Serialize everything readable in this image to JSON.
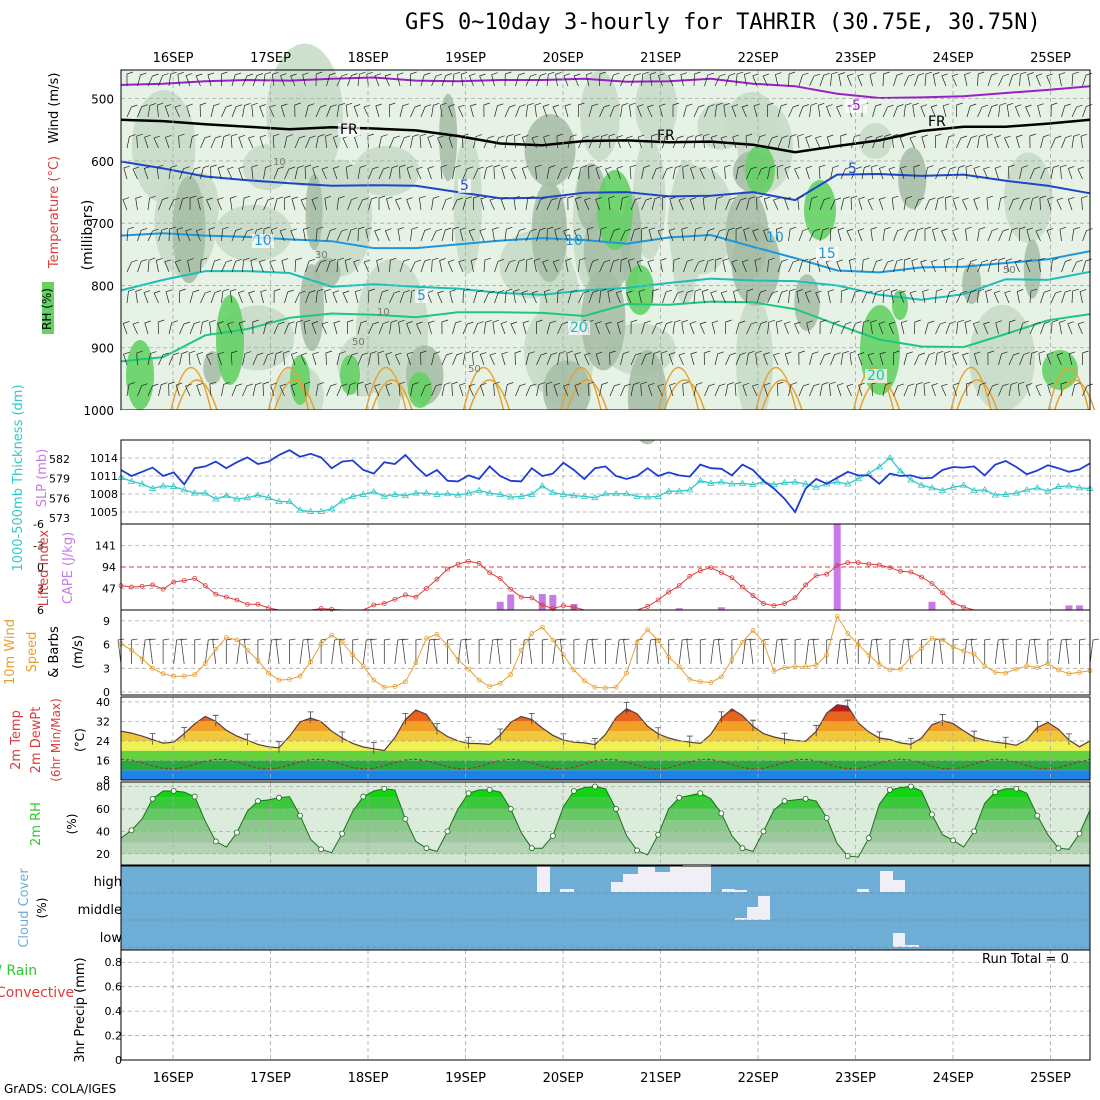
{
  "header": {
    "title": "GFS 0~10day 3-hourly for TAHRIR (30.75E, 30.75N)"
  },
  "footer": {
    "credit": "GrADS: COLA/IGES",
    "run_total": "Run Total = 0"
  },
  "colors": {
    "background": "#ffffff",
    "grid": "#a8a8a8",
    "rh_light": "#e6f2e6",
    "rh_mid": "#c8dcc8",
    "rh_dark": "#a4bca4",
    "rh_green": "#64d264",
    "temp_purple": "#9b1fc8",
    "temp_blue": "#1e46c8",
    "temp_sky": "#1e96dc",
    "temp_teal": "#1ebeb4",
    "temp_green": "#1ec87a",
    "temp_orange": "#e6a032",
    "slp_line": "#1e3cd2",
    "thickness_line": "#32c8c8",
    "lifted_index": "#dc3c3c",
    "cape_bar": "#c87ae6",
    "wind_speed": "#e6a032",
    "cloud_sky": "#6eaed6",
    "cloud_fill": "#f0eef6",
    "rh2m_green": "#32c832"
  },
  "chart_data": [
    {
      "panel": "upper-air",
      "type": "area",
      "axis_title": "(millibars)",
      "legend_labels": [
        "Wind (m/s)",
        "Temperature (°C)",
        "RH (%)"
      ],
      "y_levels": [
        "500",
        "600",
        "700",
        "800",
        "900",
        "1000"
      ],
      "y_range_mb": [
        454,
        1000
      ],
      "x_tick_labels": [
        "16SEP",
        "17SEP",
        "18SEP",
        "19SEP",
        "20SEP",
        "21SEP",
        "22SEP",
        "23SEP",
        "24SEP",
        "25SEP"
      ],
      "isotherm_labels": [
        "-5",
        "FR",
        "5",
        "10",
        "15",
        "20"
      ],
      "rh_contour_labels": [
        "10",
        "30",
        "50"
      ],
      "isotherms": [
        {
          "label": "-5",
          "color": "purple",
          "pressure": [
            478,
            476,
            472,
            470,
            471,
            468,
            466,
            471,
            472,
            470,
            470,
            468,
            473,
            472,
            468,
            476,
            480,
            492,
            499,
            498,
            496,
            491,
            486,
            480
          ]
        },
        {
          "label": "FR",
          "color": "black",
          "pressure": [
            534,
            536,
            541,
            545,
            549,
            546,
            548,
            551,
            560,
            572,
            575,
            568,
            567,
            570,
            569,
            574,
            586,
            576,
            567,
            552,
            545,
            545,
            540,
            534
          ]
        },
        {
          "label": "5",
          "color": "blue",
          "pressure": [
            601,
            612,
            625,
            631,
            636,
            640,
            639,
            640,
            650,
            660,
            659,
            651,
            650,
            657,
            656,
            650,
            663,
            622,
            621,
            624,
            622,
            632,
            640,
            652
          ]
        },
        {
          "label": "10",
          "color": "sky",
          "pressure": [
            720,
            716,
            720,
            722,
            726,
            729,
            740,
            740,
            734,
            728,
            724,
            727,
            733,
            723,
            719,
            738,
            756,
            776,
            779,
            771,
            770,
            764,
            758,
            745
          ]
        },
        {
          "label": "15",
          "color": "teal",
          "pressure": [
            808,
            791,
            777,
            777,
            780,
            802,
            798,
            802,
            805,
            812,
            815,
            808,
            804,
            796,
            789,
            792,
            793,
            800,
            815,
            823,
            814,
            790,
            791,
            778
          ]
        },
        {
          "label": "20",
          "color": "green",
          "pressure": [
            922,
            915,
            880,
            870,
            852,
            845,
            847,
            851,
            843,
            843,
            844,
            849,
            830,
            831,
            826,
            827,
            838,
            863,
            887,
            898,
            899,
            878,
            856,
            846
          ]
        }
      ]
    },
    {
      "panel": "slp-thickness",
      "type": "line",
      "ylabel_left": "1000-500mb Thickness (dm)",
      "ylabel_right": "SLP (mb)",
      "left_ticks": [
        "582",
        "579",
        "576",
        "573"
      ],
      "right_ticks": [
        "1014",
        "1011",
        "1008",
        "1005"
      ],
      "series": [
        {
          "name": "SLP (mb)",
          "units": "mb",
          "range": [
            1004,
            1016
          ],
          "values": [
            1012,
            1011,
            1011.7,
            1012.4,
            1011,
            1011.6,
            1009.6,
            1012.3,
            1012.6,
            1013.4,
            1012.3,
            1013.3,
            1014.1,
            1013,
            1013.4,
            1014.5,
            1015.3,
            1014.2,
            1014.7,
            1014.1,
            1012.3,
            1013.4,
            1013.6,
            1012,
            1011.4,
            1013.3,
            1013,
            1014.5,
            1012.6,
            1011,
            1012,
            1010.2,
            1010.1,
            1011.1,
            1010.5,
            1012.6,
            1011,
            1010.2,
            1010.1,
            1012.3,
            1011,
            1011.4,
            1013.2,
            1012,
            1010.5,
            1012.3,
            1012.6,
            1011,
            1010.5,
            1011,
            1012.3,
            1011,
            1011.6,
            1011.1,
            1010.9,
            1012.9,
            1012.3,
            1012.2,
            1011.1,
            1012.9,
            1012,
            1010.2,
            1008.9,
            1007.2,
            1005,
            1008.9,
            1010.5,
            1009.7,
            1010.7,
            1011.7,
            1011.1,
            1011.1,
            1009.7,
            1011.4,
            1011,
            1011.1,
            1010.6,
            1010.7,
            1012,
            1012.5,
            1012.4,
            1012.6,
            1011.1,
            1012.9,
            1013.5,
            1012.5,
            1011.3,
            1011.9,
            1012.8,
            1012.3,
            1011.7,
            1012.1,
            1013.1
          ]
        },
        {
          "name": "1000-500mb Thickness (dm)",
          "units": "dm",
          "range": [
            573,
            584
          ],
          "values": [
            579.2,
            578.6,
            578.2,
            577.5,
            577.9,
            577.8,
            577.3,
            576.8,
            576.8,
            575.9,
            576.4,
            575.9,
            576.1,
            576.5,
            576.1,
            575.5,
            575.5,
            574.2,
            574,
            574,
            574.4,
            575.6,
            576.3,
            576.6,
            577,
            576.3,
            576.6,
            576.4,
            576.8,
            576.8,
            576.6,
            576.7,
            576.5,
            576.8,
            577.2,
            576.8,
            576.6,
            576.2,
            576.3,
            576.6,
            577.9,
            576.9,
            576.6,
            576.4,
            576.3,
            576.1,
            576.7,
            576.7,
            576.7,
            576.3,
            576.2,
            576.3,
            577.1,
            577.1,
            577.3,
            578.7,
            578.3,
            578.5,
            578.2,
            578.3,
            578.1,
            578.5,
            578.1,
            578.4,
            578.5,
            578.2,
            577.7,
            578.2,
            578.5,
            578.2,
            579,
            579.8,
            580.8,
            582.2,
            580.2,
            578.8,
            578,
            577.6,
            577.2,
            577.7,
            578,
            577.2,
            577.3,
            576.5,
            576.6,
            576.8,
            577.3,
            577.6,
            577.1,
            577.8,
            577.9,
            577.6,
            577.5
          ]
        }
      ]
    },
    {
      "panel": "lifted-index-cape",
      "type": "bar",
      "ylabel_left": "Lifted Index",
      "ylabel_right": "CAPE (J/kg)",
      "left_ticks": [
        "-6",
        "-3",
        "0",
        "3",
        "6"
      ],
      "right_ticks": [
        "141",
        "94",
        "47"
      ],
      "li_range": [
        -6,
        6
      ],
      "cape_range": [
        0,
        188
      ],
      "lifted_index": [
        2.6,
        2.8,
        2.7,
        2.5,
        3.1,
        2.1,
        1.9,
        1.6,
        2.6,
        3.8,
        4.2,
        4.6,
        5.2,
        5.2,
        5.7,
        6,
        6,
        6,
        6,
        5.8,
        5.9,
        6,
        6,
        6,
        5.3,
        5.1,
        4.5,
        3.9,
        4.2,
        3,
        1.7,
        0.3,
        -0.4,
        -0.8,
        -0.5,
        0.8,
        1.6,
        3.1,
        4.2,
        4.3,
        5.3,
        5.8,
        5.4,
        5.6,
        6,
        6,
        6,
        6,
        6,
        6,
        5.5,
        4.6,
        3.5,
        2.6,
        1.3,
        0.5,
        0.1,
        0.8,
        1.5,
        2.8,
        4,
        5.1,
        5.4,
        5.1,
        4.3,
        2.5,
        1.2,
        1,
        -0.2,
        -0.6,
        -0.6,
        -0.4,
        -0.3,
        0.1,
        0.6,
        0.7,
        1.4,
        2.3,
        3.6,
        5,
        5.6,
        6,
        6,
        6,
        6,
        6,
        6,
        6,
        6,
        6,
        6,
        6,
        6
      ],
      "cape": [
        0,
        0,
        0,
        0,
        0,
        0,
        0,
        0,
        0,
        0,
        0,
        0,
        0,
        0,
        0,
        0,
        0,
        0,
        0,
        0,
        0,
        0,
        0,
        0,
        0,
        0,
        0,
        0,
        0,
        0,
        0,
        0,
        0,
        0,
        0,
        0,
        18,
        34,
        0,
        0,
        35,
        33,
        0,
        13,
        0,
        0,
        0,
        0,
        0,
        0,
        0,
        0,
        0,
        0,
        0,
        0,
        0,
        0,
        0,
        0,
        0,
        0,
        0,
        0,
        0,
        0,
        0,
        0,
        0,
        0,
        0,
        0,
        0,
        0,
        0,
        0,
        0,
        0,
        0,
        0,
        0,
        0,
        0,
        0,
        0,
        0,
        0,
        0,
        0,
        0,
        0,
        0,
        0
      ]
    },
    {
      "panel": "10m-wind",
      "type": "line",
      "ylabel": "10m Wind Speed & Barbs (m/s)",
      "ticks": [
        "9",
        "6",
        "3",
        "0"
      ],
      "range": [
        0,
        10
      ],
      "speed": [
        6.1,
        5.3,
        4.2,
        3,
        2.3,
        2,
        2,
        2.2,
        3.6,
        5.4,
        6.9,
        6.6,
        5.3,
        4,
        2.4,
        1.5,
        1.6,
        2,
        3.8,
        6.1,
        7.2,
        6.3,
        4.7,
        3.3,
        1.5,
        0.6,
        0.7,
        1.3,
        3.7,
        6.8,
        7.3,
        5.9,
        4.1,
        2.9,
        1.5,
        0.7,
        1.1,
        2.2,
        5.3,
        7.4,
        8.2,
        6.6,
        4.7,
        2.8,
        1.4,
        0.6,
        0.5,
        0.6,
        2.4,
        6.3,
        7.9,
        6.5,
        4.4,
        3.2,
        1.6,
        1.3,
        1.2,
        1.9,
        4.1,
        6.3,
        7.8,
        6.3,
        2.6,
        3.1,
        3.2,
        3.2,
        3.4,
        4.7,
        9.6,
        7.4,
        6,
        4.7,
        3.5,
        2.8,
        2.9,
        4.4,
        5.5,
        6.8,
        6.6,
        5.7,
        5.2,
        4.8,
        3.3,
        2.5,
        2.4,
        2.9,
        3.3,
        3.1,
        3.6,
        2.8,
        2.3,
        2.5,
        2.7
      ]
    },
    {
      "panel": "2m-temp",
      "type": "area",
      "ylabel": "2m Temp 2m DewPt (6hr Min/Max) (°C)",
      "ticks": [
        "40",
        "32",
        "24",
        "16",
        "8"
      ],
      "range": [
        8,
        42
      ],
      "temp": [
        28,
        27.2,
        26,
        24.5,
        23.1,
        23.5,
        27,
        31,
        34,
        32,
        28.4,
        26,
        24.3,
        22.6,
        21.6,
        21.2,
        25.9,
        31.8,
        33.4,
        31.9,
        28,
        25.2,
        23,
        21.5,
        20.8,
        20.1,
        25.3,
        32.8,
        36.7,
        34.9,
        28.6,
        25.8,
        24,
        23,
        22.9,
        22.6,
        26.4,
        31.6,
        34,
        32.8,
        29.3,
        26.3,
        24.4,
        23.5,
        23.2,
        22.5,
        26.7,
        33.5,
        37.2,
        35.1,
        30,
        26.9,
        25.2,
        24.1,
        23.5,
        23,
        26.7,
        33.4,
        37.1,
        34.4,
        30,
        27,
        25.6,
        24.7,
        24.2,
        23.9,
        27.9,
        35.4,
        38.8,
        38.2,
        31.4,
        27.7,
        25.2,
        24.6,
        23.2,
        22.6,
        25.2,
        30.6,
        32.3,
        31.1,
        28.2,
        25.5,
        24.3,
        23.5,
        23,
        22.2,
        24.6,
        29.5,
        31.6,
        28.8,
        24.4,
        21.6,
        24
      ]
    },
    {
      "panel": "2m-rh",
      "type": "area",
      "ylabel": "2m RH (%)",
      "ticks": [
        "80",
        "60",
        "40",
        "20"
      ],
      "range": [
        10,
        84
      ],
      "values": [
        34,
        41,
        51,
        69,
        76,
        76,
        75,
        71,
        49,
        31,
        26,
        39,
        58,
        67,
        68,
        70,
        71,
        54,
        33,
        24,
        21,
        38,
        58,
        71,
        76,
        78,
        77,
        51,
        31,
        25,
        22,
        40,
        60,
        74,
        77,
        77,
        75,
        60,
        39,
        25,
        25,
        36,
        62,
        76,
        79,
        80,
        78,
        60,
        36,
        23,
        19,
        37,
        60,
        70,
        72,
        74,
        69,
        56,
        36,
        25,
        22,
        40,
        59,
        67,
        68,
        69,
        67,
        52,
        29,
        18,
        17,
        34,
        64,
        77,
        79,
        80,
        76,
        55,
        37,
        32,
        26,
        40,
        65,
        75,
        78,
        78,
        74,
        54,
        37,
        25,
        24,
        38,
        59
      ]
    },
    {
      "panel": "cloud-cover",
      "type": "heatmap",
      "ylabel": "Cloud Cover (%)",
      "ticks": [
        "high",
        "middle",
        "low"
      ],
      "high": [
        0,
        0,
        0,
        0,
        0,
        0,
        0,
        0,
        0,
        0,
        0,
        0,
        0,
        0,
        0,
        0,
        0,
        0,
        0,
        0,
        0,
        0,
        0,
        0,
        0,
        0,
        0,
        0,
        0,
        0,
        0,
        0,
        0,
        0,
        0,
        0,
        0,
        0,
        0,
        0,
        0,
        0,
        0,
        10,
        0,
        4,
        0,
        0,
        0,
        0,
        0,
        0,
        0,
        0,
        0,
        0,
        0,
        0,
        0,
        0,
        0,
        0,
        0,
        0,
        0,
        0,
        0,
        0,
        0,
        0,
        0,
        0,
        0,
        0,
        0,
        0,
        0,
        0,
        0,
        0,
        0,
        0,
        0,
        0,
        0,
        0,
        0,
        0,
        0,
        0,
        0,
        0,
        0
      ],
      "high_detail": [
        0,
        0,
        0,
        0,
        0,
        0,
        0,
        0,
        0,
        0,
        0,
        0,
        0,
        0,
        0,
        0,
        0,
        0,
        0,
        0,
        0,
        0,
        0,
        0,
        0,
        0,
        0,
        0,
        0,
        0,
        0,
        0,
        0,
        0,
        0,
        0,
        0,
        0,
        0,
        0,
        0,
        0,
        0,
        0,
        0,
        0,
        0,
        0,
        0,
        0,
        35,
        0,
        5,
        0,
        0,
        0,
        0,
        0,
        0,
        0,
        0,
        0,
        0,
        0,
        0,
        0,
        0,
        0,
        0,
        0,
        0,
        0,
        0,
        0,
        0,
        0,
        0,
        0,
        0,
        0,
        0,
        0,
        0,
        0,
        0,
        0,
        0,
        0,
        0,
        0,
        0,
        0,
        0
      ],
      "middle": [],
      "low": []
    },
    {
      "panel": "precip",
      "type": "bar",
      "ylabel_right": "3hr Precip (mm)",
      "ylabel_left": "Total / Rain Convective",
      "ticks": [
        "0.8",
        "0.6",
        "0.4",
        "0.2",
        "0"
      ],
      "range": [
        0,
        0.9
      ],
      "values": []
    }
  ]
}
